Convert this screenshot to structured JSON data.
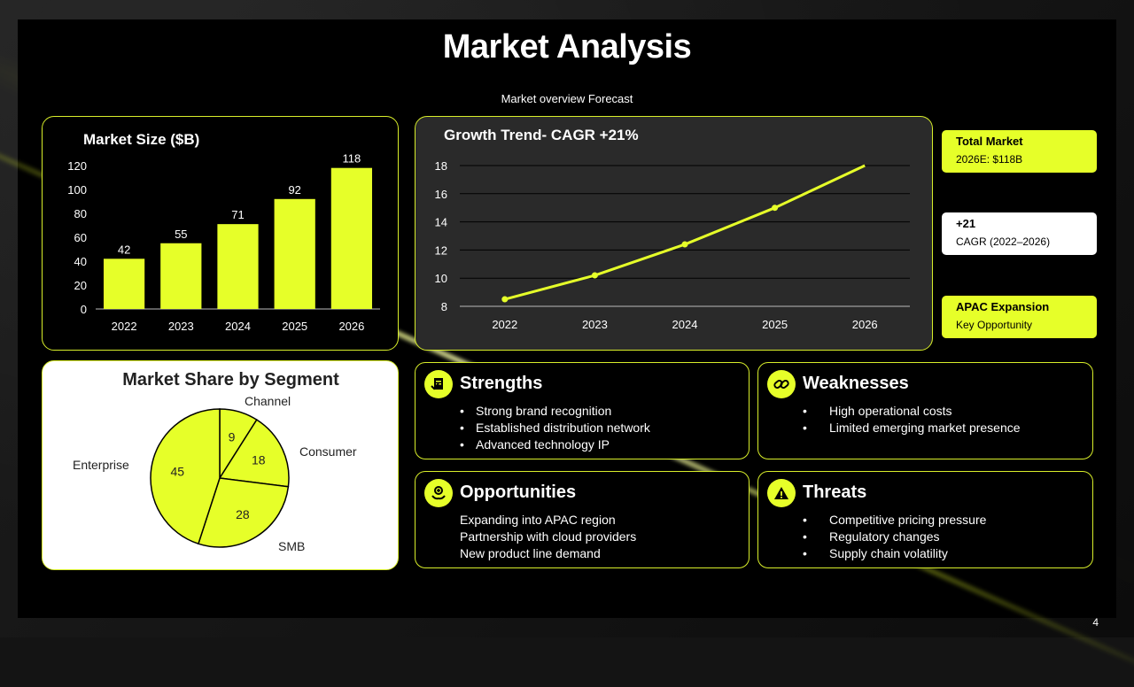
{
  "title": "Market Analysis",
  "subtitle": "Market overview Forecast",
  "page_number": "4",
  "colors": {
    "accent": "#e6ff29",
    "panel_bg": "#000000",
    "chart_bg": "#2a2a2a"
  },
  "chart_data": [
    {
      "type": "bar",
      "title": "Market Size ($B)",
      "categories": [
        "2022",
        "2023",
        "2024",
        "2025",
        "2026"
      ],
      "values": [
        42,
        55,
        71,
        92,
        118
      ],
      "y_ticks": [
        "0",
        "20",
        "40",
        "60",
        "80",
        "100",
        "120"
      ],
      "ylim": [
        0,
        120
      ],
      "grid": false,
      "data_labels": true
    },
    {
      "type": "line",
      "title": "Growth Trend- CAGR +21%",
      "x": [
        "2022",
        "2023",
        "2024",
        "2025",
        "2026"
      ],
      "values": [
        8.5,
        10.2,
        12.4,
        15.0,
        18.0
      ],
      "y_ticks": [
        "8",
        "10",
        "12",
        "14",
        "16",
        "18"
      ],
      "ylim": [
        8,
        18
      ],
      "grid": true
    },
    {
      "type": "pie",
      "title": "Market Share by Segment",
      "slices": [
        {
          "label": "Channel",
          "value": 9
        },
        {
          "label": "Consumer",
          "value": 18
        },
        {
          "label": "SMB",
          "value": 28
        },
        {
          "label": "Enterprise",
          "value": 45
        }
      ]
    }
  ],
  "kpis": [
    {
      "title": "Total Market",
      "sub": "2026E: $118B",
      "style": "yellow"
    },
    {
      "title": "+21",
      "sub": "CAGR (2022–2026)",
      "style": "white"
    },
    {
      "title": "APAC Expansion",
      "sub": "Key Opportunity",
      "style": "yellow"
    }
  ],
  "swot": {
    "strengths": {
      "title": "Strengths",
      "icon": "document-check-icon",
      "items": [
        "Strong brand recognition",
        "Established distribution network",
        "Advanced technology IP"
      ]
    },
    "weaknesses": {
      "title": "Weaknesses",
      "icon": "broken-link-icon",
      "items": [
        "High operational costs",
        "Limited emerging market presence"
      ]
    },
    "opportunities": {
      "title": "Opportunities",
      "icon": "growth-hand-icon",
      "items": [
        "Expanding into APAC region",
        "Partnership with cloud providers",
        "New product line demand"
      ]
    },
    "threats": {
      "title": "Threats",
      "icon": "warning-icon",
      "items": [
        "Competitive pricing pressure",
        "Regulatory changes",
        "Supply chain volatility"
      ]
    }
  }
}
